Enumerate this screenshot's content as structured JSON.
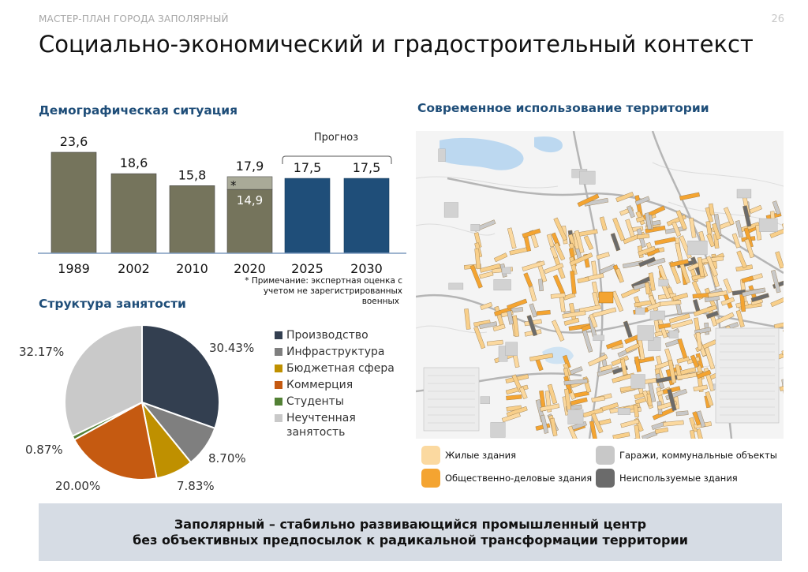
{
  "header": {
    "supertitle": "МАСТЕР-ПЛАН ГОРОДА ЗАПОЛЯРНЫЙ",
    "page_number": "26",
    "title": "Социально-экономический и градостроительный контекст"
  },
  "demography": {
    "heading": "Демографическая ситуация",
    "forecast_label": "Прогноз",
    "asterisk": "*",
    "note_line1": "* Примечание: экспертная оценка с",
    "note_line2": "учетом не зарегистрированных",
    "note_line3": "военных"
  },
  "employment": {
    "heading": "Структура занятости"
  },
  "territory": {
    "heading": "Современное использование территории",
    "legend": [
      {
        "label": "Жилые здания",
        "color": "#fbd9a0"
      },
      {
        "label": "Гаражи, коммунальные объекты",
        "color": "#c8c8c8"
      },
      {
        "label": "Общественно-деловые здания",
        "color": "#f4a431"
      },
      {
        "label": "Неиспользуемые здания",
        "color": "#6b6b6b"
      }
    ]
  },
  "banner": {
    "line1": "Заполярный – стабильно развивающийся промышленный центр",
    "line2": "без объективных предпосылок к радикальной трансформации территории"
  },
  "chart_data": [
    {
      "type": "bar",
      "categories": [
        "1989",
        "2002",
        "2010",
        "2020",
        "2025",
        "2030"
      ],
      "values": [
        23.6,
        18.6,
        15.8,
        17.9,
        17.5,
        17.5
      ],
      "value_labels": [
        "23,6",
        "18,6",
        "15,8",
        "17,9",
        "17,5",
        "17,5"
      ],
      "registered_2020": 14.9,
      "registered_2020_label": "14,9",
      "forecast_categories": [
        "2025",
        "2030"
      ],
      "colors": {
        "historical": "#75745c",
        "forecast": "#1f4e79",
        "unregistered": "#a9aa98"
      },
      "ylim": [
        0,
        30
      ]
    },
    {
      "type": "pie",
      "labels": [
        "Производство",
        "Инфраструктура",
        "Бюджетная сфера",
        "Коммерция",
        "Студенты",
        "Неучтенная занятость"
      ],
      "values": [
        30.43,
        8.7,
        7.83,
        20.0,
        0.87,
        32.17
      ],
      "value_labels": [
        "30.43%",
        "8.70%",
        "7.83%",
        "20.00%",
        "0.87%",
        "32.17%"
      ],
      "colors": [
        "#333f50",
        "#7f7f7f",
        "#bf9000",
        "#c55a11",
        "#538135",
        "#c9c9c9"
      ],
      "legend_position": "right"
    }
  ]
}
